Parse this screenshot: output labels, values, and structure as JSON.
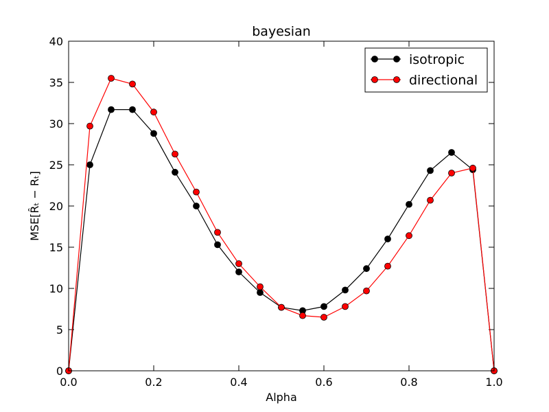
{
  "chart_data": {
    "type": "line",
    "title": "bayesian",
    "xlabel": "Alpha",
    "ylabel": "MSE[R̂ₜ − Rₜ]",
    "xlim": [
      0.0,
      1.0
    ],
    "ylim": [
      0,
      40
    ],
    "x_ticks": [
      "0.0",
      "0.2",
      "0.4",
      "0.6",
      "0.8",
      "1.0"
    ],
    "y_ticks": [
      "0",
      "5",
      "10",
      "15",
      "20",
      "25",
      "30",
      "35",
      "40"
    ],
    "legend_position": "top-right",
    "grid": false,
    "x": [
      0.0,
      0.05,
      0.1,
      0.15,
      0.2,
      0.25,
      0.3,
      0.35,
      0.4,
      0.45,
      0.5,
      0.55,
      0.6,
      0.65,
      0.7,
      0.75,
      0.8,
      0.85,
      0.9,
      0.95,
      1.0
    ],
    "series": [
      {
        "name": "isotropic",
        "color": "#000000",
        "values": [
          0.0,
          25.0,
          31.7,
          31.7,
          28.8,
          24.1,
          20.0,
          15.3,
          12.0,
          9.5,
          7.7,
          7.3,
          7.8,
          9.8,
          12.4,
          16.0,
          20.2,
          24.3,
          26.5,
          24.4,
          0.0
        ]
      },
      {
        "name": "directional",
        "color": "#ff0000",
        "values": [
          0.0,
          29.7,
          35.5,
          34.8,
          31.4,
          26.3,
          21.7,
          16.8,
          13.0,
          10.2,
          7.7,
          6.7,
          6.5,
          7.8,
          9.7,
          12.7,
          16.4,
          20.7,
          24.0,
          24.6,
          0.0
        ]
      }
    ]
  }
}
